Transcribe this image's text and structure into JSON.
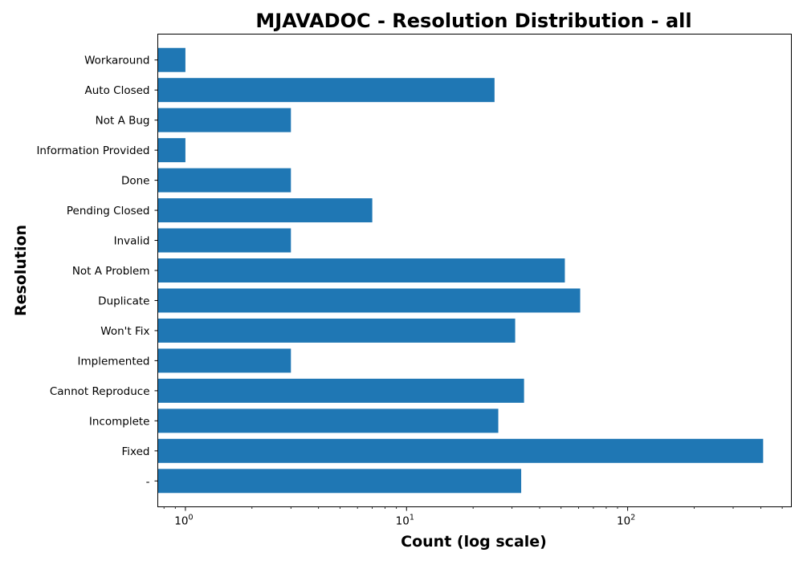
{
  "chart_data": {
    "type": "bar",
    "orientation": "horizontal",
    "title": "MJAVADOC - Resolution Distribution - all",
    "xlabel": "Count (log scale)",
    "ylabel": "Resolution",
    "x_scale": "log",
    "xlim": [
      0.75,
      550
    ],
    "x_ticks": [
      {
        "value": 1,
        "base": "10",
        "exp": "0"
      },
      {
        "value": 10,
        "base": "10",
        "exp": "1"
      },
      {
        "value": 100,
        "base": "10",
        "exp": "2"
      }
    ],
    "categories": [
      "-",
      "Fixed",
      "Incomplete",
      "Cannot Reproduce",
      "Implemented",
      "Won't Fix",
      "Duplicate",
      "Not A Problem",
      "Invalid",
      "Pending Closed",
      "Done",
      "Information Provided",
      "Not A Bug",
      "Auto Closed",
      "Workaround"
    ],
    "values": [
      33,
      410,
      26,
      34,
      3,
      31,
      61,
      52,
      3,
      7,
      3,
      1,
      3,
      25,
      1
    ],
    "bar_color": "#1f77b4",
    "grid": false
  }
}
